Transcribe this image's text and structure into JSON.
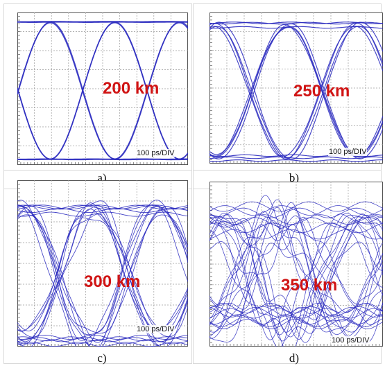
{
  "panels": [
    {
      "id": "a",
      "distance": "200 km",
      "scale": "100 ps/DIV",
      "caption": "a)"
    },
    {
      "id": "b",
      "distance": "250 km",
      "scale": "100 ps/DIV",
      "caption": "b)"
    },
    {
      "id": "c",
      "distance": "300 km",
      "scale": "100 ps/DIV",
      "caption": "c)"
    },
    {
      "id": "d",
      "distance": "350 km",
      "scale": "100 ps/DIV",
      "caption": "d)"
    }
  ],
  "colors": {
    "trace": "#2b2bbf",
    "label": "#d01414",
    "grid": "#9a9a9a"
  }
}
